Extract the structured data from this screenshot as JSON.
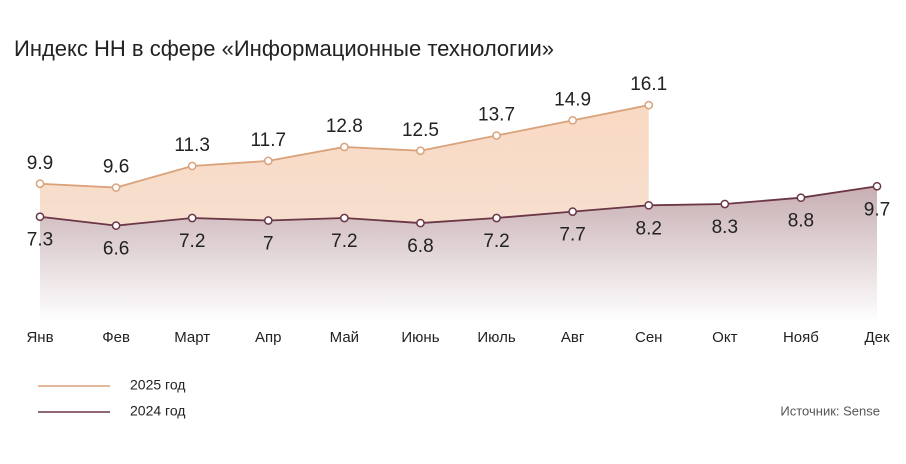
{
  "chart_data": {
    "type": "line",
    "title": "Индекс HH в сфере «Информационные технологии»",
    "categories": [
      "Янв",
      "Фев",
      "Март",
      "Апр",
      "Май",
      "Июнь",
      "Июль",
      "Авг",
      "Сен",
      "Окт",
      "Нояб",
      "Дек"
    ],
    "series": [
      {
        "name": "2025 год",
        "color": "#d9a27a",
        "values": [
          9.9,
          9.6,
          11.3,
          11.7,
          12.8,
          12.5,
          13.7,
          14.9,
          16.1,
          null,
          null,
          null
        ]
      },
      {
        "name": "2024  год",
        "color": "#6b3646",
        "values": [
          7.3,
          6.6,
          7.2,
          7,
          7.2,
          6.8,
          7.2,
          7.7,
          8.2,
          8.3,
          8.8,
          9.7
        ]
      }
    ],
    "ylim": [
      -1,
      18
    ],
    "source": "Источник: Sense"
  }
}
